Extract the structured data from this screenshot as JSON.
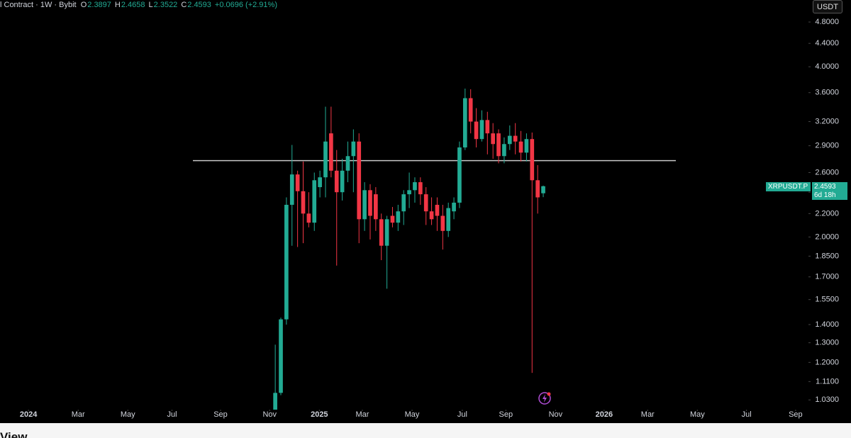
{
  "header": {
    "symbol": "l Contract · 1W · Bybit",
    "ohlc": [
      {
        "key": "O",
        "value": "2.3897"
      },
      {
        "key": "H",
        "value": "2.4658"
      },
      {
        "key": "L",
        "value": "2.3522"
      },
      {
        "key": "C",
        "value": "2.4593"
      }
    ],
    "change": "+0.0696 (+2.91%)",
    "currency_button": "USDT"
  },
  "price_tag": {
    "symbol": "XRPUSDT.P",
    "price": "2.4593",
    "countdown": "6d 18h"
  },
  "footer": {
    "text": "View"
  },
  "chart_data": {
    "type": "candlestick",
    "log_scale": true,
    "grid": false,
    "up_color": "#22ab94",
    "down_color": "#f23645",
    "categories": [
      null,
      null,
      null,
      null,
      null,
      null,
      null,
      null,
      null,
      null,
      null,
      null,
      null,
      null,
      null,
      null,
      null,
      null,
      null,
      null,
      null,
      null,
      null,
      null,
      null,
      null,
      null,
      null,
      null,
      null,
      null,
      null,
      null,
      null,
      null,
      null,
      null,
      null,
      null,
      null,
      null,
      null,
      null,
      null,
      null,
      null,
      null,
      null,
      null
    ],
    "open": [
      0.98,
      1.06,
      1.43,
      2.28,
      2.58,
      2.41,
      2.2,
      2.12,
      2.45,
      2.55,
      3.05,
      2.62,
      2.4,
      2.62,
      2.78,
      2.95,
      2.15,
      2.42,
      2.38,
      2.15,
      1.93,
      2.18,
      2.12,
      2.22,
      2.38,
      2.42,
      2.5,
      2.38,
      2.22,
      2.28,
      2.18,
      2.05,
      2.22,
      2.3,
      2.88,
      3.52,
      3.2,
      2.98,
      3.22,
      3.05,
      3.05,
      2.78,
      2.92,
      3.02,
      2.95,
      2.82,
      2.98,
      2.52,
      2.3897
    ],
    "high": [
      1.29,
      1.44,
      2.35,
      2.91,
      2.62,
      2.72,
      2.4,
      2.6,
      2.62,
      3.4,
      3.4,
      2.85,
      2.75,
      2.95,
      3.1,
      3.05,
      2.5,
      2.48,
      2.45,
      2.2,
      2.18,
      2.26,
      2.28,
      2.42,
      2.6,
      2.55,
      2.55,
      2.45,
      2.35,
      2.35,
      2.28,
      2.3,
      2.35,
      2.95,
      3.66,
      3.65,
      3.38,
      3.35,
      3.33,
      3.18,
      3.1,
      3.0,
      3.15,
      3.18,
      3.08,
      3.05,
      3.06,
      2.68,
      2.4658
    ],
    "low": [
      0.95,
      1.05,
      1.4,
      1.93,
      1.92,
      1.95,
      2.08,
      2.05,
      2.35,
      2.35,
      2.55,
      1.78,
      2.32,
      2.5,
      2.4,
      1.95,
      2.05,
      1.98,
      2.05,
      1.82,
      1.62,
      2.08,
      2.05,
      2.1,
      2.25,
      2.3,
      2.28,
      2.1,
      2.1,
      2.05,
      1.9,
      2.0,
      2.15,
      2.25,
      2.85,
      3.05,
      2.88,
      2.95,
      2.8,
      2.75,
      2.7,
      2.7,
      2.85,
      2.8,
      2.72,
      2.72,
      1.15,
      2.2,
      2.3522
    ],
    "close": [
      1.06,
      1.43,
      2.28,
      2.58,
      2.41,
      2.2,
      2.12,
      2.52,
      2.55,
      2.95,
      2.62,
      2.4,
      2.62,
      2.78,
      2.95,
      2.15,
      2.42,
      2.18,
      2.15,
      1.93,
      2.15,
      2.12,
      2.22,
      2.38,
      2.42,
      2.5,
      2.38,
      2.22,
      2.15,
      2.18,
      2.05,
      2.25,
      2.3,
      2.88,
      3.52,
      3.2,
      2.98,
      3.22,
      3.05,
      2.92,
      2.78,
      2.92,
      3.02,
      2.95,
      2.82,
      2.98,
      2.52,
      2.35,
      2.4593
    ],
    "hline": 2.73,
    "xlim": [
      -49.3,
      95.5
    ],
    "xticks": [
      {
        "value": -44.2,
        "label": "2024"
      },
      {
        "value": -35.3,
        "label": "Mar"
      },
      {
        "value": -26.4,
        "label": "May"
      },
      {
        "value": -18.5,
        "label": "Jul"
      },
      {
        "value": -9.8,
        "label": "Sep"
      },
      {
        "value": -1.0,
        "label": "Nov"
      },
      {
        "value": 7.9,
        "label": "2025"
      },
      {
        "value": 15.6,
        "label": "Mar"
      },
      {
        "value": 24.5,
        "label": "May"
      },
      {
        "value": 33.5,
        "label": "Jul"
      },
      {
        "value": 41.3,
        "label": "Sep"
      },
      {
        "value": 50.2,
        "label": "Nov"
      },
      {
        "value": 58.9,
        "label": "2026"
      },
      {
        "value": 66.7,
        "label": "Mar"
      },
      {
        "value": 75.6,
        "label": "May"
      },
      {
        "value": 84.4,
        "label": "Jul"
      },
      {
        "value": 93.2,
        "label": "Sep"
      }
    ],
    "ylim": [
      0.99,
      5.25
    ],
    "yticks": [
      {
        "value": 1.03,
        "label": "1.0300"
      },
      {
        "value": 1.11,
        "label": "1.1100"
      },
      {
        "value": 1.2,
        "label": "1.2000"
      },
      {
        "value": 1.3,
        "label": "1.3000"
      },
      {
        "value": 1.4,
        "label": "1.4000"
      },
      {
        "value": 1.55,
        "label": "1.5500"
      },
      {
        "value": 1.7,
        "label": "1.7000"
      },
      {
        "value": 1.85,
        "label": "1.8500"
      },
      {
        "value": 2.0,
        "label": "2.0000"
      },
      {
        "value": 2.2,
        "label": "2.2000"
      },
      {
        "value": 2.4,
        "label": "2.4000"
      },
      {
        "value": 2.6,
        "label": "2.6000"
      },
      {
        "value": 2.9,
        "label": "2.9000"
      },
      {
        "value": 3.2,
        "label": "3.2000"
      },
      {
        "value": 3.6,
        "label": "3.6000"
      },
      {
        "value": 4.0,
        "label": "4.0000"
      },
      {
        "value": 4.4,
        "label": "4.4000"
      },
      {
        "value": 4.8,
        "label": "4.8000"
      }
    ]
  }
}
